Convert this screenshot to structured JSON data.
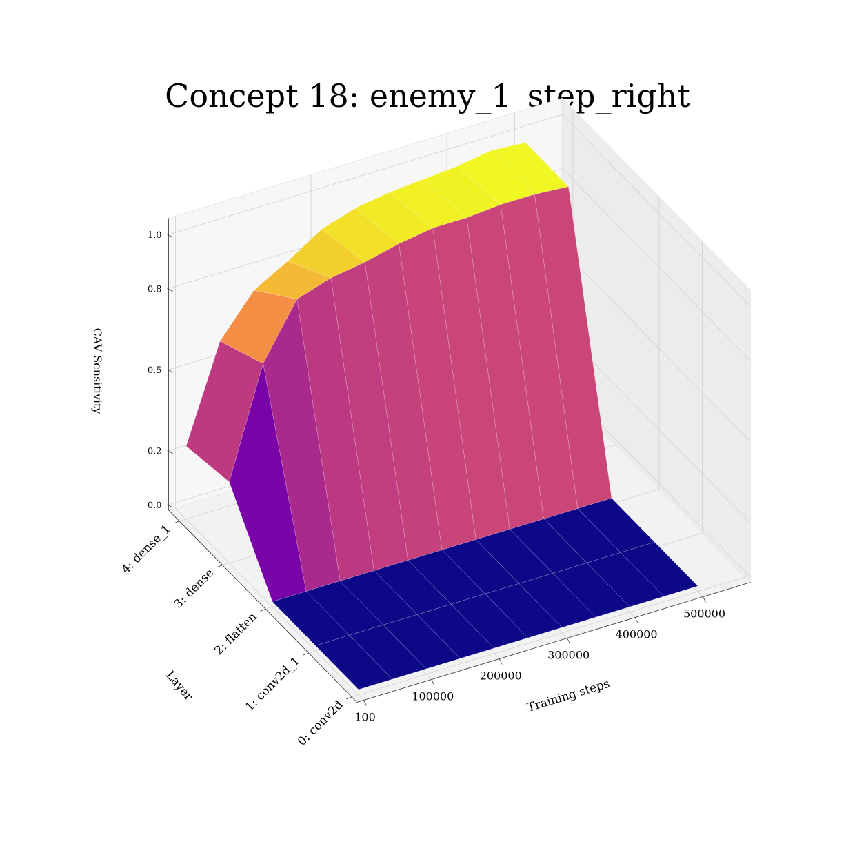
{
  "chart_data": {
    "type": "surface",
    "title": "Concept 18: enemy_1_step_right",
    "xlabel": "Training steps",
    "ylabel": "Layer",
    "zlabel": "CAV Sensitivity",
    "x_ticks": [
      "100",
      "100000",
      "200000",
      "300000",
      "400000",
      "500000"
    ],
    "y_categories": [
      "0: conv2d",
      "1: conv2d_1",
      "2: flatten",
      "3: dense",
      "4: dense_1"
    ],
    "z_ticks": [
      "0.0",
      "0.2",
      "0.5",
      "0.8",
      "1.0"
    ],
    "zlim": [
      0,
      1
    ],
    "grid": true,
    "colormap": "plasma",
    "x": [
      100,
      50000,
      100000,
      150000,
      200000,
      250000,
      300000,
      350000,
      400000,
      450000,
      500000
    ],
    "z": [
      [
        0,
        0,
        0,
        0,
        0,
        0,
        0,
        0,
        0,
        0,
        0
      ],
      [
        0,
        0,
        0,
        0,
        0,
        0,
        0,
        0,
        0,
        0,
        0
      ],
      [
        0,
        0,
        0,
        0,
        0,
        0,
        0,
        0,
        0,
        0,
        0
      ],
      [
        0.28,
        0.68,
        0.88,
        0.92,
        0.94,
        0.97,
        0.99,
        0.99,
        1.0,
        1.0,
        0.99
      ],
      [
        0.25,
        0.6,
        0.75,
        0.82,
        0.9,
        0.94,
        0.96,
        0.97,
        0.98,
        1.0,
        0.99
      ]
    ]
  }
}
